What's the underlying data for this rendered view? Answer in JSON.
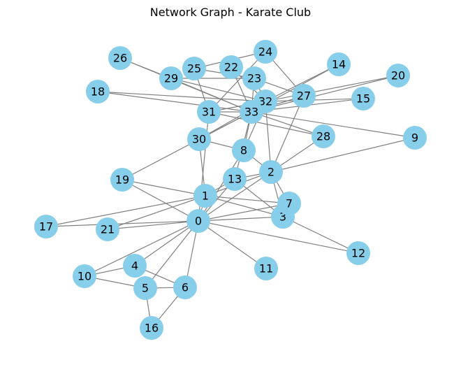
{
  "title": "Network Graph - Karate Club",
  "colors": {
    "node": "#87ceeb",
    "edge": "#808080",
    "text": "#000000"
  },
  "graph": {
    "nodes": [
      "0",
      "1",
      "2",
      "3",
      "4",
      "5",
      "6",
      "7",
      "8",
      "9",
      "10",
      "11",
      "12",
      "13",
      "14",
      "15",
      "16",
      "17",
      "18",
      "19",
      "20",
      "21",
      "22",
      "23",
      "24",
      "25",
      "26",
      "27",
      "28",
      "29",
      "30",
      "31",
      "32",
      "33"
    ],
    "edges": [
      [
        0,
        1
      ],
      [
        0,
        2
      ],
      [
        0,
        3
      ],
      [
        0,
        4
      ],
      [
        0,
        5
      ],
      [
        0,
        6
      ],
      [
        0,
        7
      ],
      [
        0,
        8
      ],
      [
        0,
        10
      ],
      [
        0,
        11
      ],
      [
        0,
        12
      ],
      [
        0,
        13
      ],
      [
        0,
        17
      ],
      [
        0,
        19
      ],
      [
        0,
        21
      ],
      [
        0,
        31
      ],
      [
        1,
        2
      ],
      [
        1,
        3
      ],
      [
        1,
        7
      ],
      [
        1,
        13
      ],
      [
        1,
        17
      ],
      [
        1,
        19
      ],
      [
        1,
        21
      ],
      [
        1,
        30
      ],
      [
        2,
        3
      ],
      [
        2,
        7
      ],
      [
        2,
        8
      ],
      [
        2,
        9
      ],
      [
        2,
        13
      ],
      [
        2,
        27
      ],
      [
        2,
        28
      ],
      [
        2,
        32
      ],
      [
        3,
        7
      ],
      [
        3,
        12
      ],
      [
        3,
        13
      ],
      [
        4,
        6
      ],
      [
        4,
        10
      ],
      [
        5,
        6
      ],
      [
        5,
        10
      ],
      [
        5,
        16
      ],
      [
        6,
        16
      ],
      [
        8,
        30
      ],
      [
        8,
        32
      ],
      [
        8,
        33
      ],
      [
        9,
        33
      ],
      [
        13,
        33
      ],
      [
        14,
        32
      ],
      [
        14,
        33
      ],
      [
        15,
        32
      ],
      [
        15,
        33
      ],
      [
        18,
        32
      ],
      [
        18,
        33
      ],
      [
        19,
        33
      ],
      [
        20,
        32
      ],
      [
        20,
        33
      ],
      [
        22,
        32
      ],
      [
        22,
        33
      ],
      [
        23,
        25
      ],
      [
        23,
        27
      ],
      [
        23,
        29
      ],
      [
        23,
        32
      ],
      [
        23,
        33
      ],
      [
        24,
        25
      ],
      [
        24,
        27
      ],
      [
        24,
        31
      ],
      [
        25,
        31
      ],
      [
        26,
        29
      ],
      [
        26,
        33
      ],
      [
        27,
        33
      ],
      [
        28,
        31
      ],
      [
        28,
        33
      ],
      [
        29,
        32
      ],
      [
        29,
        33
      ],
      [
        30,
        32
      ],
      [
        30,
        33
      ],
      [
        31,
        32
      ],
      [
        31,
        33
      ],
      [
        32,
        33
      ]
    ]
  }
}
